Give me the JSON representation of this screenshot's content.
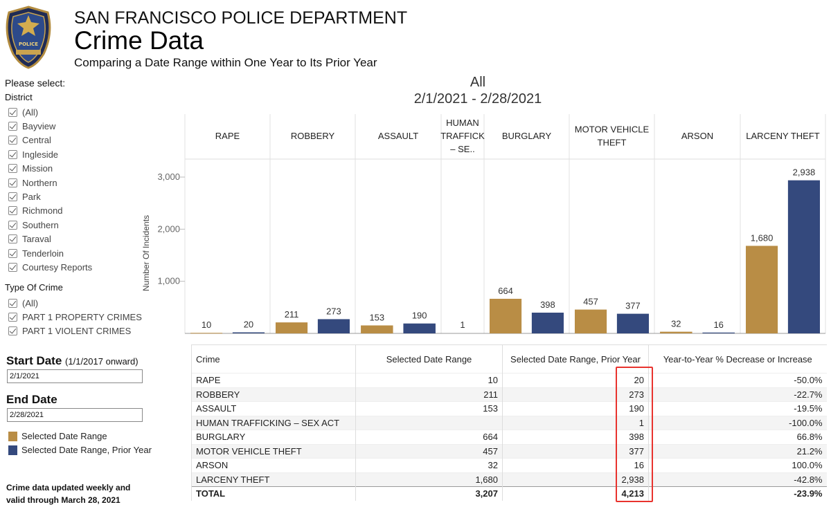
{
  "header": {
    "badge_text": "POLICE",
    "department": "SAN FRANCISCO POLICE DEPARTMENT",
    "title": "Crime Data",
    "subtitle": "Comparing a Date Range within One Year to Its Prior Year"
  },
  "filters": {
    "prompt": "Please select:",
    "district_label": "District",
    "districts": [
      "(All)",
      "Bayview",
      "Central",
      "Ingleside",
      "Mission",
      "Northern",
      "Park",
      "Richmond",
      "Southern",
      "Taraval",
      "Tenderloin",
      "Courtesy Reports"
    ],
    "crime_type_label": "Type Of Crime",
    "crime_types": [
      "(All)",
      "PART 1 PROPERTY CRIMES",
      "PART 1 VIOLENT CRIMES"
    ]
  },
  "dates": {
    "start_label": "Start Date",
    "start_hint": "(1/1/2017 onward)",
    "start_value": "2/1/2021",
    "end_label": "End Date",
    "end_value": "2/28/2021"
  },
  "legend": {
    "current": "Selected Date Range",
    "prior": "Selected Date Range, Prior Year"
  },
  "footnote": {
    "line1": "Crime data updated weekly and",
    "line2": "valid through March 28, 2021"
  },
  "colors": {
    "current": "#b98d45",
    "prior": "#34497d",
    "highlight": "#e8322d"
  },
  "chart_data": {
    "type": "bar",
    "title": "All",
    "subtitle": "2/1/2021 - 2/28/2021",
    "ylabel": "Number Of Incidents",
    "ylim": [
      0,
      3300
    ],
    "yticks": [
      1000,
      2000,
      3000
    ],
    "ytick_labels": [
      "1,000",
      "2,000",
      "3,000"
    ],
    "categories": [
      {
        "lines": [
          "RAPE"
        ]
      },
      {
        "lines": [
          "ROBBERY"
        ]
      },
      {
        "lines": [
          "ASSAULT"
        ]
      },
      {
        "lines": [
          "HUMAN",
          "TRAFFICK",
          "– SE.."
        ]
      },
      {
        "lines": [
          "BURGLARY"
        ]
      },
      {
        "lines": [
          "MOTOR VEHICLE",
          "THEFT"
        ]
      },
      {
        "lines": [
          "ARSON"
        ]
      },
      {
        "lines": [
          "LARCENY THEFT"
        ]
      }
    ],
    "series": [
      {
        "name": "Selected Date Range",
        "values": [
          10,
          211,
          153,
          null,
          664,
          457,
          32,
          1680
        ],
        "labels": [
          "10",
          "211",
          "153",
          "",
          "664",
          "457",
          "32",
          "1,680"
        ]
      },
      {
        "name": "Selected Date Range, Prior Year",
        "values": [
          20,
          273,
          190,
          1,
          398,
          377,
          16,
          2938
        ],
        "labels": [
          "20",
          "273",
          "190",
          "1",
          "398",
          "377",
          "16",
          "2,938"
        ]
      }
    ]
  },
  "table": {
    "headers": [
      "Crime",
      "Selected Date Range",
      "Selected Date Range, Prior Year",
      "Year-to-Year % Decrease or Increase"
    ],
    "rows": [
      [
        "RAPE",
        "10",
        "20",
        "-50.0%"
      ],
      [
        "ROBBERY",
        "211",
        "273",
        "-22.7%"
      ],
      [
        "ASSAULT",
        "153",
        "190",
        "-19.5%"
      ],
      [
        "HUMAN TRAFFICKING – SEX ACT",
        "",
        "1",
        "-100.0%"
      ],
      [
        "BURGLARY",
        "664",
        "398",
        "66.8%"
      ],
      [
        "MOTOR VEHICLE THEFT",
        "457",
        "377",
        "21.2%"
      ],
      [
        "ARSON",
        "32",
        "16",
        "100.0%"
      ],
      [
        "LARCENY THEFT",
        "1,680",
        "2,938",
        "-42.8%"
      ]
    ],
    "total": [
      "TOTAL",
      "3,207",
      "4,213",
      "-23.9%"
    ]
  }
}
